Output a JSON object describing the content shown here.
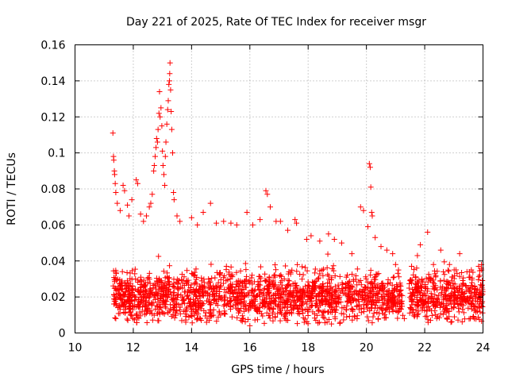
{
  "chart_data": {
    "type": "scatter",
    "title": "Day 221 of 2025, Rate Of TEC Index for receiver msgr",
    "xlabel": "GPS time / hours",
    "ylabel": "ROTI / TECUs",
    "xlim": [
      10,
      24
    ],
    "ylim": [
      0,
      0.16
    ],
    "x_ticks": [
      "10",
      "12",
      "14",
      "16",
      "18",
      "20",
      "22",
      "24"
    ],
    "y_ticks": [
      "0",
      "0.02",
      "0.04",
      "0.06",
      "0.08",
      "0.1",
      "0.12",
      "0.14",
      "0.16"
    ],
    "grid": true,
    "marker": "+",
    "color": "#ff0000",
    "series": [
      {
        "name": "ROTI",
        "points": [
          [
            11.3,
            0.111
          ],
          [
            11.32,
            0.098
          ],
          [
            11.33,
            0.096
          ],
          [
            11.35,
            0.09
          ],
          [
            11.36,
            0.088
          ],
          [
            11.38,
            0.083
          ],
          [
            11.4,
            0.078
          ],
          [
            11.45,
            0.072
          ],
          [
            11.55,
            0.068
          ],
          [
            11.65,
            0.082
          ],
          [
            11.7,
            0.079
          ],
          [
            11.8,
            0.071
          ],
          [
            11.85,
            0.065
          ],
          [
            11.95,
            0.074
          ],
          [
            12.1,
            0.085
          ],
          [
            12.15,
            0.083
          ],
          [
            12.25,
            0.066
          ],
          [
            12.35,
            0.062
          ],
          [
            12.45,
            0.065
          ],
          [
            12.55,
            0.07
          ],
          [
            12.6,
            0.072
          ],
          [
            12.65,
            0.077
          ],
          [
            12.7,
            0.09
          ],
          [
            12.72,
            0.093
          ],
          [
            12.75,
            0.098
          ],
          [
            12.78,
            0.103
          ],
          [
            12.8,
            0.108
          ],
          [
            12.83,
            0.106
          ],
          [
            12.85,
            0.113
          ],
          [
            12.88,
            0.122
          ],
          [
            12.9,
            0.134
          ],
          [
            12.92,
            0.12
          ],
          [
            12.95,
            0.125
          ],
          [
            12.98,
            0.115
          ],
          [
            13.0,
            0.101
          ],
          [
            13.02,
            0.093
          ],
          [
            13.05,
            0.088
          ],
          [
            13.08,
            0.082
          ],
          [
            13.1,
            0.098
          ],
          [
            13.12,
            0.106
          ],
          [
            13.15,
            0.116
          ],
          [
            13.18,
            0.124
          ],
          [
            13.2,
            0.129
          ],
          [
            13.22,
            0.138
          ],
          [
            13.24,
            0.14
          ],
          [
            13.25,
            0.144
          ],
          [
            13.26,
            0.15
          ],
          [
            13.28,
            0.135
          ],
          [
            13.3,
            0.123
          ],
          [
            13.32,
            0.113
          ],
          [
            13.35,
            0.1
          ],
          [
            13.38,
            0.078
          ],
          [
            13.4,
            0.074
          ],
          [
            13.5,
            0.065
          ],
          [
            13.6,
            0.062
          ],
          [
            14.0,
            0.064
          ],
          [
            14.2,
            0.06
          ],
          [
            14.4,
            0.067
          ],
          [
            14.65,
            0.072
          ],
          [
            14.85,
            0.061
          ],
          [
            15.1,
            0.062
          ],
          [
            15.35,
            0.061
          ],
          [
            15.55,
            0.06
          ],
          [
            15.9,
            0.067
          ],
          [
            16.1,
            0.06
          ],
          [
            16.35,
            0.063
          ],
          [
            16.55,
            0.079
          ],
          [
            16.6,
            0.077
          ],
          [
            16.7,
            0.07
          ],
          [
            16.9,
            0.062
          ],
          [
            17.05,
            0.062
          ],
          [
            17.3,
            0.057
          ],
          [
            17.55,
            0.063
          ],
          [
            17.6,
            0.061
          ],
          [
            17.95,
            0.052
          ],
          [
            18.1,
            0.054
          ],
          [
            18.4,
            0.051
          ],
          [
            18.7,
            0.055
          ],
          [
            18.9,
            0.052
          ],
          [
            19.15,
            0.05
          ],
          [
            19.5,
            0.044
          ],
          [
            19.8,
            0.07
          ],
          [
            19.9,
            0.068
          ],
          [
            20.05,
            0.059
          ],
          [
            20.1,
            0.094
          ],
          [
            20.13,
            0.092
          ],
          [
            20.15,
            0.081
          ],
          [
            20.18,
            0.067
          ],
          [
            20.2,
            0.065
          ],
          [
            20.3,
            0.053
          ],
          [
            20.5,
            0.048
          ],
          [
            20.7,
            0.046
          ],
          [
            20.9,
            0.044
          ],
          [
            21.0,
            0.038
          ],
          [
            21.1,
            0.035
          ],
          [
            21.55,
            0.037
          ],
          [
            21.75,
            0.043
          ],
          [
            21.85,
            0.049
          ],
          [
            22.1,
            0.056
          ],
          [
            22.3,
            0.038
          ],
          [
            22.55,
            0.046
          ],
          [
            22.85,
            0.038
          ],
          [
            23.2,
            0.044
          ],
          [
            23.45,
            0.034
          ],
          [
            23.6,
            0.035
          ],
          [
            23.85,
            0.037
          ],
          [
            23.95,
            0.035
          ],
          [
            11.4,
            0.008
          ],
          [
            11.9,
            0.01
          ],
          [
            12.5,
            0.012
          ],
          [
            13.8,
            0.006
          ],
          [
            14.3,
            0.008
          ],
          [
            15.7,
            0.007
          ],
          [
            16.0,
            0.004
          ],
          [
            17.3,
            0.007
          ],
          [
            18.65,
            0.006
          ],
          [
            18.8,
            0.005
          ],
          [
            19.6,
            0.009
          ],
          [
            20.4,
            0.008
          ],
          [
            21.3,
            0.008
          ],
          [
            22.2,
            0.007
          ],
          [
            22.9,
            0.006
          ],
          [
            23.7,
            0.008
          ]
        ],
        "band": {
          "x_range": [
            11.3,
            24.0
          ],
          "gap": [
            21.25,
            21.45
          ],
          "count": 2200,
          "typical_value": 0.02,
          "min_value": 0.005,
          "max_value": 0.045
        }
      }
    ]
  }
}
